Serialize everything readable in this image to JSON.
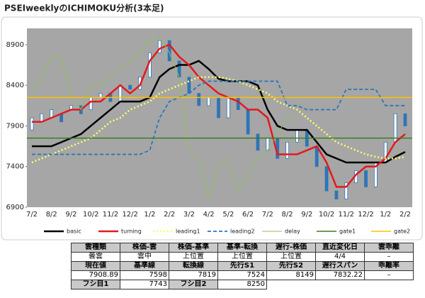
{
  "chart_data": {
    "type": "ichimoku",
    "title": "PSEIweeklyのICHIMOKU分析(3本足)",
    "categories": [
      "7/2",
      null,
      "8/2",
      null,
      "9/2",
      null,
      "10/2",
      null,
      "11/2",
      null,
      "12/2",
      null,
      "1/2",
      null,
      "2/2",
      null,
      "3/2",
      null,
      "4/2",
      null,
      "5/2",
      null,
      "6/2",
      null,
      "7/2",
      null,
      "8/2",
      null,
      "9/2",
      null,
      "10/2",
      null,
      "11/2",
      null,
      "12/2",
      null,
      "1/2",
      null,
      "2/2"
    ],
    "ylim": [
      6900,
      9100
    ],
    "yticks": [
      6900,
      7400,
      7900,
      8400,
      8900
    ],
    "grid": false,
    "candles": {
      "color": "#2e75b6",
      "open": [
        7850,
        7950,
        8000,
        8050,
        8100,
        8150,
        8100,
        8250,
        8300,
        8200,
        8400,
        8350,
        8500,
        8800,
        8950,
        8700,
        8500,
        8300,
        8150,
        8250,
        8000,
        8250,
        8100,
        7800,
        7600,
        7750,
        7500,
        7700,
        7850,
        7650,
        7400,
        7100,
        7000,
        7200,
        7350,
        7150,
        7450,
        7700,
        8050
      ],
      "close": [
        8000,
        8050,
        8100,
        7950,
        8150,
        8050,
        8250,
        8300,
        8200,
        8400,
        8350,
        8500,
        8800,
        8950,
        8700,
        8500,
        8300,
        8150,
        8250,
        8000,
        8250,
        8100,
        7800,
        7600,
        7750,
        7500,
        7700,
        7850,
        7650,
        7400,
        7100,
        7000,
        7200,
        7350,
        7150,
        7450,
        7700,
        8050,
        7900
      ]
    },
    "series": [
      {
        "name": "basic",
        "color": "#000000",
        "width": 2.5,
        "dash": "solid",
        "values": [
          7650,
          7650,
          7650,
          7700,
          7750,
          7800,
          7900,
          8000,
          8100,
          8200,
          8200,
          8200,
          8250,
          8500,
          8600,
          8650,
          8650,
          8700,
          8600,
          8480,
          8450,
          8450,
          8450,
          8400,
          8100,
          7900,
          7850,
          7850,
          7850,
          7700,
          7550,
          7500,
          7450,
          7450,
          7450,
          7450,
          7450,
          7520,
          7580
        ]
      },
      {
        "name": "turning",
        "color": "#e31a1c",
        "width": 2.5,
        "dash": "solid",
        "values": [
          7950,
          7950,
          8000,
          8050,
          8100,
          8100,
          8200,
          8200,
          8300,
          8400,
          8300,
          8400,
          8700,
          8850,
          8900,
          8750,
          8650,
          8500,
          8400,
          8300,
          8250,
          8200,
          8100,
          8100,
          8000,
          7550,
          7550,
          7550,
          7600,
          7650,
          7450,
          7150,
          7150,
          7300,
          7400,
          7400,
          7500,
          7700,
          7800
        ]
      },
      {
        "name": "leading1",
        "color": "#ffff66",
        "width": 2.5,
        "dash": "dotted",
        "values": [
          7450,
          7500,
          7550,
          7600,
          7650,
          7700,
          7750,
          7850,
          7950,
          8000,
          8100,
          8150,
          8200,
          8300,
          8350,
          8400,
          8450,
          8500,
          8500,
          8500,
          8480,
          8450,
          8400,
          8350,
          8300,
          8200,
          8150,
          8100,
          8000,
          7900,
          7800,
          7700,
          7650,
          7600,
          7550,
          7520,
          7500,
          7500,
          7520
        ]
      },
      {
        "name": "leading2",
        "color": "#2e75b6",
        "width": 1.8,
        "dash": "dashed",
        "values": [
          7550,
          7550,
          7550,
          7550,
          7550,
          7550,
          7550,
          7550,
          7550,
          7550,
          7550,
          7550,
          7600,
          8000,
          8200,
          8250,
          8300,
          8400,
          8450,
          8450,
          8450,
          8450,
          8450,
          8450,
          8450,
          8450,
          8150,
          8150,
          8100,
          8100,
          8100,
          8100,
          8350,
          8350,
          8350,
          8350,
          8150,
          8150,
          8150
        ]
      },
      {
        "name": "delay",
        "color": "#8fbf5a",
        "width": 1,
        "dash": "solid",
        "values": [
          8300,
          8500,
          8750,
          8750,
          8250,
          8100,
          8400,
          8400,
          8500,
          8600,
          8700,
          8800,
          8950,
          9000,
          8800,
          8500,
          7600,
          7500,
          7000,
          7400,
          7500,
          7100,
          7300,
          7500,
          7600,
          7800,
          8000,
          8000,
          null,
          null,
          null,
          null,
          null,
          null,
          null,
          null,
          null,
          null,
          null
        ]
      },
      {
        "name": "gate1",
        "color": "#3a7d22",
        "width": 1.5,
        "dash": "solid",
        "value": 7750
      },
      {
        "name": "gate2",
        "color": "#ffc000",
        "width": 1.5,
        "dash": "solid",
        "value": 8250
      }
    ]
  },
  "table": {
    "rows": [
      [
        "雲種類",
        "株価-雲",
        "株価-基準",
        "基準-転換",
        "遅行-株価",
        "直近変化日",
        "雲乖離"
      ],
      [
        "曇雲",
        "雲中",
        "上位置",
        "上位置",
        "上位置",
        "4/4",
        "–"
      ],
      [
        "現在値",
        "基準線",
        "転換線",
        "先行S1",
        "先行S2",
        "遅行スパン",
        "乖離率"
      ],
      [
        7908.89,
        7598,
        7819,
        7524,
        8149,
        7832.22,
        "–"
      ],
      [
        "フシ目1",
        7743,
        "フシ目2",
        8250
      ]
    ]
  }
}
